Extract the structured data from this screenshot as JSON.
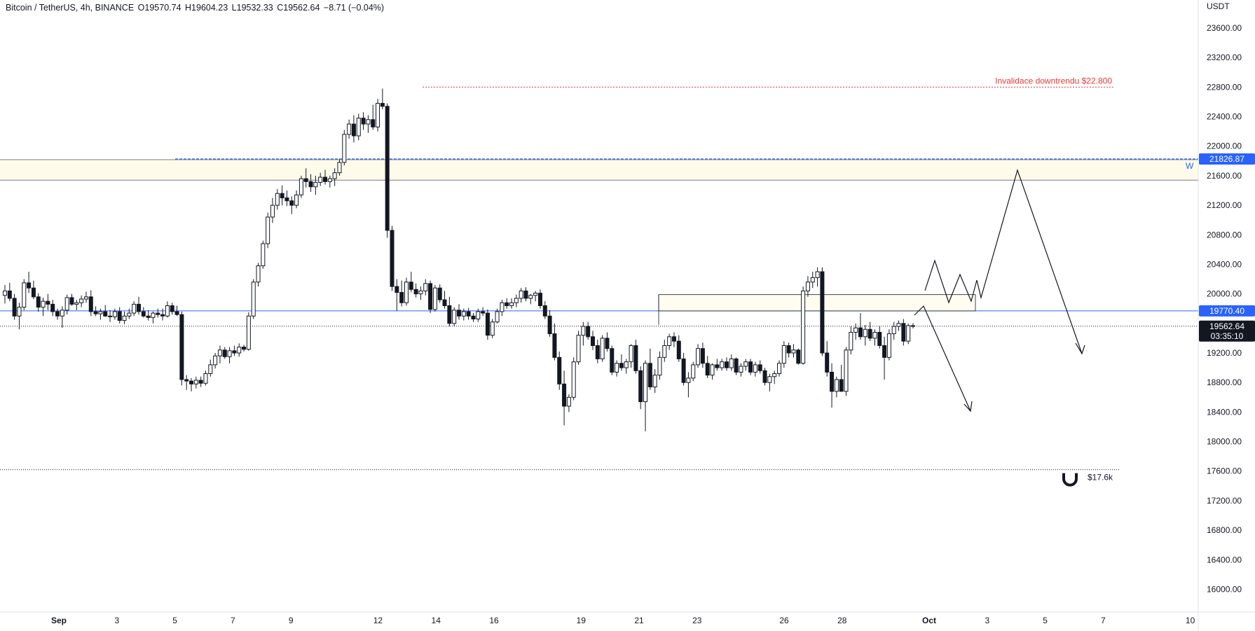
{
  "legend": {
    "symbol": "Bitcoin / TetherUS, 4h, BINANCE",
    "open": "O19570.74",
    "high": "H19604.23",
    "low": "L19532.33",
    "close": "C19562.64",
    "change": "−8.71 (−0.04%)"
  },
  "chart_data": {
    "type": "candlestick",
    "currency_label": "USDT",
    "ylim": [
      15800,
      23800
    ],
    "y_ticks": [
      "23600.00",
      "23200.00",
      "22800.00",
      "22400.00",
      "22000.00",
      "21600.00",
      "21200.00",
      "20800.00",
      "20400.00",
      "20000.00",
      "19200.00",
      "18800.00",
      "18400.00",
      "18000.00",
      "17600.00",
      "17200.00",
      "16800.00",
      "16400.00",
      "16000.00"
    ],
    "x_ticks": [
      {
        "label": "Sep",
        "day": 1
      },
      {
        "label": "3",
        "day": 3
      },
      {
        "label": "5",
        "day": 5
      },
      {
        "label": "7",
        "day": 7
      },
      {
        "label": "9",
        "day": 9
      },
      {
        "label": "12",
        "day": 12
      },
      {
        "label": "14",
        "day": 14
      },
      {
        "label": "16",
        "day": 16
      },
      {
        "label": "19",
        "day": 19
      },
      {
        "label": "21",
        "day": 21
      },
      {
        "label": "23",
        "day": 23
      },
      {
        "label": "26",
        "day": 26
      },
      {
        "label": "28",
        "day": 28
      },
      {
        "label": "Oct",
        "day": 31
      },
      {
        "label": "3",
        "day": 33
      },
      {
        "label": "5",
        "day": 35
      },
      {
        "label": "7",
        "day": 37
      },
      {
        "label": "10",
        "day": 40
      }
    ],
    "price_badges": {
      "zone_top": {
        "value": "21826.87",
        "color": "#2962ff"
      },
      "support": {
        "value": "19770.40",
        "color": "#2962ff"
      },
      "last": {
        "value": "19562.64",
        "countdown": "03:35:10",
        "color": "#131722"
      }
    },
    "horizontal_levels": {
      "resistance_zone": [
        21540,
        21826.87
      ],
      "invalidation": 22800,
      "support": 19770.4,
      "current": 19562.64,
      "target": 17620
    },
    "annotations": {
      "invalidation_text": "Invalidace downtrendu $22.800",
      "zone_marker": "W",
      "magnet_text": "$17.6k"
    },
    "colors": {
      "up": "#ffffff",
      "down": "#131722",
      "zone_fill": "#fffbea",
      "blue": "#2962ff",
      "red": "#e53935"
    },
    "candles": [
      [
        19980,
        20120,
        19870,
        20040
      ],
      [
        20040,
        20150,
        19900,
        19940
      ],
      [
        19940,
        20000,
        19650,
        19700
      ],
      [
        19700,
        19880,
        19520,
        19820
      ],
      [
        19820,
        20200,
        19780,
        20150
      ],
      [
        20150,
        20300,
        20010,
        20080
      ],
      [
        20080,
        20180,
        19930,
        19960
      ],
      [
        19960,
        20010,
        19760,
        19820
      ],
      [
        19820,
        19950,
        19700,
        19900
      ],
      [
        19900,
        20000,
        19780,
        19860
      ],
      [
        19860,
        19920,
        19700,
        19760
      ],
      [
        19760,
        19800,
        19650,
        19700
      ],
      [
        19700,
        19830,
        19540,
        19780
      ],
      [
        19780,
        19990,
        19720,
        19950
      ],
      [
        19950,
        20000,
        19840,
        19860
      ],
      [
        19860,
        19920,
        19780,
        19880
      ],
      [
        19880,
        19980,
        19820,
        19930
      ],
      [
        19930,
        20030,
        19880,
        19960
      ],
      [
        19960,
        20050,
        19700,
        19760
      ],
      [
        19760,
        19830,
        19700,
        19730
      ],
      [
        19730,
        19800,
        19650,
        19760
      ],
      [
        19760,
        19850,
        19690,
        19700
      ],
      [
        19700,
        19780,
        19620,
        19690
      ],
      [
        19690,
        19800,
        19650,
        19760
      ],
      [
        19760,
        19820,
        19600,
        19640
      ],
      [
        19640,
        19760,
        19590,
        19700
      ],
      [
        19700,
        19800,
        19660,
        19740
      ],
      [
        19740,
        19900,
        19700,
        19860
      ],
      [
        19860,
        19960,
        19720,
        19760
      ],
      [
        19760,
        19820,
        19680,
        19700
      ],
      [
        19700,
        19780,
        19640,
        19680
      ],
      [
        19680,
        19760,
        19600,
        19740
      ],
      [
        19740,
        19800,
        19680,
        19720
      ],
      [
        19720,
        19800,
        19640,
        19700
      ],
      [
        19700,
        19900,
        19680,
        19840
      ],
      [
        19840,
        19880,
        19720,
        19760
      ],
      [
        19760,
        19840,
        19700,
        19720
      ],
      [
        19720,
        19760,
        18760,
        18840
      ],
      [
        18840,
        18900,
        18700,
        18820
      ],
      [
        18820,
        18860,
        18680,
        18780
      ],
      [
        18780,
        18880,
        18720,
        18830
      ],
      [
        18830,
        18880,
        18740,
        18790
      ],
      [
        18790,
        18960,
        18760,
        18920
      ],
      [
        18920,
        19110,
        18880,
        19040
      ],
      [
        19040,
        19200,
        18990,
        19160
      ],
      [
        19160,
        19300,
        19060,
        19240
      ],
      [
        19240,
        19280,
        19120,
        19150
      ],
      [
        19150,
        19280,
        19060,
        19230
      ],
      [
        19230,
        19300,
        19160,
        19200
      ],
      [
        19200,
        19330,
        19150,
        19280
      ],
      [
        19280,
        19310,
        19220,
        19250
      ],
      [
        19250,
        19750,
        19230,
        19700
      ],
      [
        19700,
        20200,
        19660,
        20160
      ],
      [
        20160,
        20420,
        20100,
        20380
      ],
      [
        20380,
        20720,
        20340,
        20680
      ],
      [
        20680,
        21100,
        20620,
        21040
      ],
      [
        21040,
        21300,
        20960,
        21200
      ],
      [
        21200,
        21420,
        21140,
        21360
      ],
      [
        21360,
        21470,
        21200,
        21300
      ],
      [
        21300,
        21400,
        21190,
        21260
      ],
      [
        21260,
        21320,
        21080,
        21200
      ],
      [
        21200,
        21400,
        21160,
        21340
      ],
      [
        21340,
        21600,
        21300,
        21560
      ],
      [
        21560,
        21700,
        21440,
        21520
      ],
      [
        21520,
        21620,
        21380,
        21450
      ],
      [
        21450,
        21600,
        21340,
        21510
      ],
      [
        21510,
        21640,
        21460,
        21580
      ],
      [
        21580,
        21680,
        21480,
        21520
      ],
      [
        21520,
        21600,
        21440,
        21560
      ],
      [
        21560,
        21700,
        21460,
        21640
      ],
      [
        21640,
        21820,
        21600,
        21780
      ],
      [
        21780,
        22220,
        21740,
        22160
      ],
      [
        22160,
        22360,
        22100,
        22300
      ],
      [
        22300,
        22420,
        22050,
        22140
      ],
      [
        22140,
        22440,
        22080,
        22380
      ],
      [
        22380,
        22460,
        22220,
        22300
      ],
      [
        22300,
        22420,
        22180,
        22360
      ],
      [
        22360,
        22560,
        22220,
        22260
      ],
      [
        22260,
        22640,
        22200,
        22580
      ],
      [
        22580,
        22780,
        22500,
        22540
      ],
      [
        22540,
        22580,
        20760,
        20860
      ],
      [
        20860,
        20920,
        20040,
        20100
      ],
      [
        20100,
        20200,
        19770,
        20020
      ],
      [
        20020,
        20180,
        19830,
        19880
      ],
      [
        19880,
        20220,
        19840,
        20160
      ],
      [
        20160,
        20300,
        20020,
        20060
      ],
      [
        20060,
        20140,
        19950,
        20000
      ],
      [
        20000,
        20100,
        19920,
        20040
      ],
      [
        20040,
        20200,
        19980,
        20140
      ],
      [
        20140,
        20180,
        19740,
        19790
      ],
      [
        19790,
        20120,
        19760,
        20080
      ],
      [
        20080,
        20130,
        19880,
        19920
      ],
      [
        19920,
        20040,
        19800,
        19840
      ],
      [
        19840,
        19960,
        19560,
        19600
      ],
      [
        19600,
        19820,
        19560,
        19780
      ],
      [
        19780,
        19860,
        19650,
        19700
      ],
      [
        19700,
        19800,
        19640,
        19760
      ],
      [
        19760,
        19810,
        19650,
        19700
      ],
      [
        19700,
        19740,
        19620,
        19660
      ],
      [
        19660,
        19800,
        19620,
        19760
      ],
      [
        19760,
        19820,
        19700,
        19740
      ],
      [
        19740,
        19790,
        19380,
        19440
      ],
      [
        19440,
        19660,
        19400,
        19620
      ],
      [
        19620,
        19800,
        19600,
        19760
      ],
      [
        19760,
        19920,
        19700,
        19880
      ],
      [
        19880,
        19940,
        19800,
        19840
      ],
      [
        19840,
        19940,
        19800,
        19880
      ],
      [
        19880,
        19990,
        19820,
        19940
      ],
      [
        19940,
        20080,
        19880,
        20040
      ],
      [
        20040,
        20090,
        19900,
        19940
      ],
      [
        19940,
        20000,
        19860,
        19980
      ],
      [
        19980,
        20040,
        19900,
        20010
      ],
      [
        20010,
        20060,
        19800,
        19840
      ],
      [
        19840,
        19900,
        19660,
        19700
      ],
      [
        19700,
        19780,
        19420,
        19460
      ],
      [
        19460,
        19600,
        19100,
        19140
      ],
      [
        19140,
        19220,
        18700,
        18780
      ],
      [
        18780,
        18960,
        18220,
        18480
      ],
      [
        18480,
        18640,
        18400,
        18600
      ],
      [
        18600,
        19140,
        18560,
        19080
      ],
      [
        19080,
        19500,
        19040,
        19440
      ],
      [
        19440,
        19620,
        19300,
        19560
      ],
      [
        19560,
        19620,
        19380,
        19420
      ],
      [
        19420,
        19500,
        19240,
        19300
      ],
      [
        19300,
        19380,
        19060,
        19120
      ],
      [
        19120,
        19440,
        19080,
        19400
      ],
      [
        19400,
        19480,
        19220,
        19260
      ],
      [
        19260,
        19300,
        18900,
        18940
      ],
      [
        18940,
        19100,
        18880,
        19060
      ],
      [
        19060,
        19180,
        18960,
        19000
      ],
      [
        19000,
        19120,
        18920,
        19080
      ],
      [
        19080,
        19320,
        19000,
        19300
      ],
      [
        19300,
        19380,
        18920,
        18960
      ],
      [
        18960,
        19020,
        18440,
        18540
      ],
      [
        18540,
        19100,
        18140,
        19060
      ],
      [
        19060,
        19260,
        18700,
        18740
      ],
      [
        18740,
        18980,
        18660,
        18900
      ],
      [
        18900,
        19220,
        18840,
        19140
      ],
      [
        19140,
        19380,
        19080,
        19300
      ],
      [
        19300,
        19460,
        19240,
        19420
      ],
      [
        19420,
        19480,
        19280,
        19360
      ],
      [
        19360,
        19440,
        19080,
        19120
      ],
      [
        19120,
        19200,
        18760,
        18800
      ],
      [
        18800,
        18940,
        18600,
        18860
      ],
      [
        18860,
        19080,
        18820,
        19040
      ],
      [
        19040,
        19320,
        19000,
        19260
      ],
      [
        19260,
        19340,
        19000,
        19060
      ],
      [
        19060,
        19160,
        18860,
        18900
      ],
      [
        18900,
        19060,
        18840,
        19040
      ],
      [
        19040,
        19120,
        18960,
        19000
      ],
      [
        19000,
        19120,
        18960,
        19080
      ],
      [
        19080,
        19140,
        18960,
        19000
      ],
      [
        19000,
        19180,
        18960,
        19120
      ],
      [
        19120,
        19140,
        18900,
        18940
      ],
      [
        18940,
        19060,
        18880,
        19020
      ],
      [
        19020,
        19120,
        18960,
        19080
      ],
      [
        19080,
        19120,
        18900,
        18940
      ],
      [
        18940,
        19080,
        18880,
        19040
      ],
      [
        19040,
        19100,
        18920,
        18960
      ],
      [
        18960,
        19000,
        18760,
        18800
      ],
      [
        18800,
        18920,
        18680,
        18880
      ],
      [
        18880,
        18960,
        18780,
        18920
      ],
      [
        18920,
        19100,
        18880,
        19060
      ],
      [
        19060,
        19360,
        19000,
        19300
      ],
      [
        19300,
        19340,
        19140,
        19200
      ],
      [
        19200,
        19320,
        19140,
        19240
      ],
      [
        19240,
        19260,
        19040,
        19060
      ],
      [
        19060,
        20100,
        19040,
        20040
      ],
      [
        20040,
        20240,
        19960,
        20160
      ],
      [
        20160,
        20300,
        20080,
        20220
      ],
      [
        20220,
        20360,
        20100,
        20300
      ],
      [
        20300,
        20360,
        19160,
        19200
      ],
      [
        19200,
        19360,
        18880,
        18940
      ],
      [
        18940,
        19060,
        18460,
        18680
      ],
      [
        18680,
        18880,
        18600,
        18840
      ],
      [
        18840,
        19040,
        18720,
        18680
      ],
      [
        18680,
        19280,
        18620,
        19240
      ],
      [
        19240,
        19560,
        19180,
        19480
      ],
      [
        19480,
        19600,
        19380,
        19540
      ],
      [
        19540,
        19740,
        19380,
        19420
      ],
      [
        19420,
        19580,
        19300,
        19520
      ],
      [
        19520,
        19620,
        19360,
        19400
      ],
      [
        19400,
        19520,
        19300,
        19480
      ],
      [
        19480,
        19560,
        19260,
        19300
      ],
      [
        19300,
        19420,
        18840,
        19140
      ],
      [
        19140,
        19520,
        19100,
        19460
      ],
      [
        19460,
        19620,
        19380,
        19560
      ],
      [
        19560,
        19640,
        19500,
        19600
      ],
      [
        19600,
        19660,
        19300,
        19360
      ],
      [
        19360,
        19600,
        19320,
        19570
      ],
      [
        19570,
        19604,
        19532,
        19562
      ]
    ]
  }
}
